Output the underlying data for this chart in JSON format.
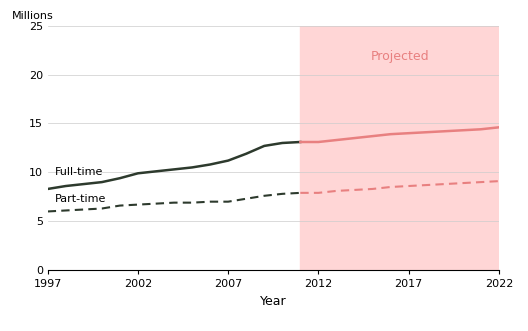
{
  "full_time_actual_years": [
    1997,
    1998,
    1999,
    2000,
    2001,
    2002,
    2003,
    2004,
    2005,
    2006,
    2007,
    2008,
    2009,
    2010,
    2011
  ],
  "full_time_actual_values": [
    8.3,
    8.6,
    8.8,
    9.0,
    9.4,
    9.9,
    10.1,
    10.3,
    10.5,
    10.8,
    11.2,
    11.9,
    12.7,
    13.0,
    13.1
  ],
  "full_time_proj_years": [
    2011,
    2012,
    2013,
    2014,
    2015,
    2016,
    2017,
    2018,
    2019,
    2020,
    2021,
    2022
  ],
  "full_time_proj_values": [
    13.1,
    13.1,
    13.3,
    13.5,
    13.7,
    13.9,
    14.0,
    14.1,
    14.2,
    14.3,
    14.4,
    14.6
  ],
  "part_time_actual_years": [
    1997,
    1998,
    1999,
    2000,
    2001,
    2002,
    2003,
    2004,
    2005,
    2006,
    2007,
    2008,
    2009,
    2010,
    2011
  ],
  "part_time_actual_values": [
    6.0,
    6.1,
    6.2,
    6.3,
    6.6,
    6.7,
    6.8,
    6.9,
    6.9,
    7.0,
    7.0,
    7.3,
    7.6,
    7.8,
    7.9
  ],
  "part_time_proj_years": [
    2011,
    2012,
    2013,
    2014,
    2015,
    2016,
    2017,
    2018,
    2019,
    2020,
    2021,
    2022
  ],
  "part_time_proj_values": [
    7.9,
    7.9,
    8.1,
    8.2,
    8.3,
    8.5,
    8.6,
    8.7,
    8.8,
    8.9,
    9.0,
    9.1
  ],
  "projection_start": 2011,
  "projection_end": 2022,
  "projected_bg_color": "#ffd6d6",
  "full_time_actual_color": "#2d3a2d",
  "full_time_proj_color": "#e88080",
  "part_time_actual_color": "#2d3a2d",
  "part_time_proj_color": "#e88080",
  "ylabel": "Millions",
  "xlabel": "Year",
  "ylim": [
    0,
    25
  ],
  "xlim": [
    1997,
    2022
  ],
  "yticks": [
    0,
    5,
    10,
    15,
    20,
    25
  ],
  "xticks": [
    1997,
    2002,
    2007,
    2012,
    2017,
    2022
  ],
  "label_fulltime": "Full-time",
  "label_parttime": "Part-time",
  "projected_label": "Projected",
  "bg_color": "#ffffff",
  "bottom_bar_color": "#e8404a"
}
